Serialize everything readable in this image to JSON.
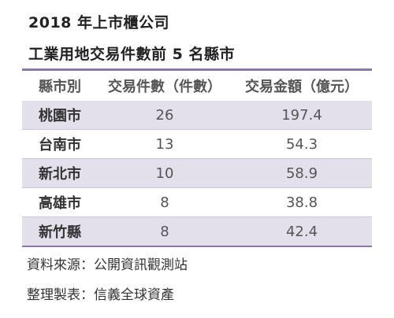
{
  "title_line1": "2018 年上市櫃公司",
  "title_line2": "工業用地交易件數前 5 名縣市",
  "table": {
    "headers": [
      "縣市別",
      "交易件數（件數）",
      "交易金額（億元）"
    ],
    "rows": [
      [
        "桃園市",
        "26",
        "197.4"
      ],
      [
        "台南市",
        "13",
        "54.3"
      ],
      [
        "新北市",
        "10",
        "58.9"
      ],
      [
        "高雄市",
        "8",
        "38.8"
      ],
      [
        "新竹縣",
        "8",
        "42.4"
      ]
    ]
  },
  "source_note": "資料來源：公開資訊觀測站",
  "compiler_note": "整理製表：信義全球資產",
  "colors": {
    "accent_line": "#8b7aa3",
    "shaded_row": "#e4e0eb"
  }
}
